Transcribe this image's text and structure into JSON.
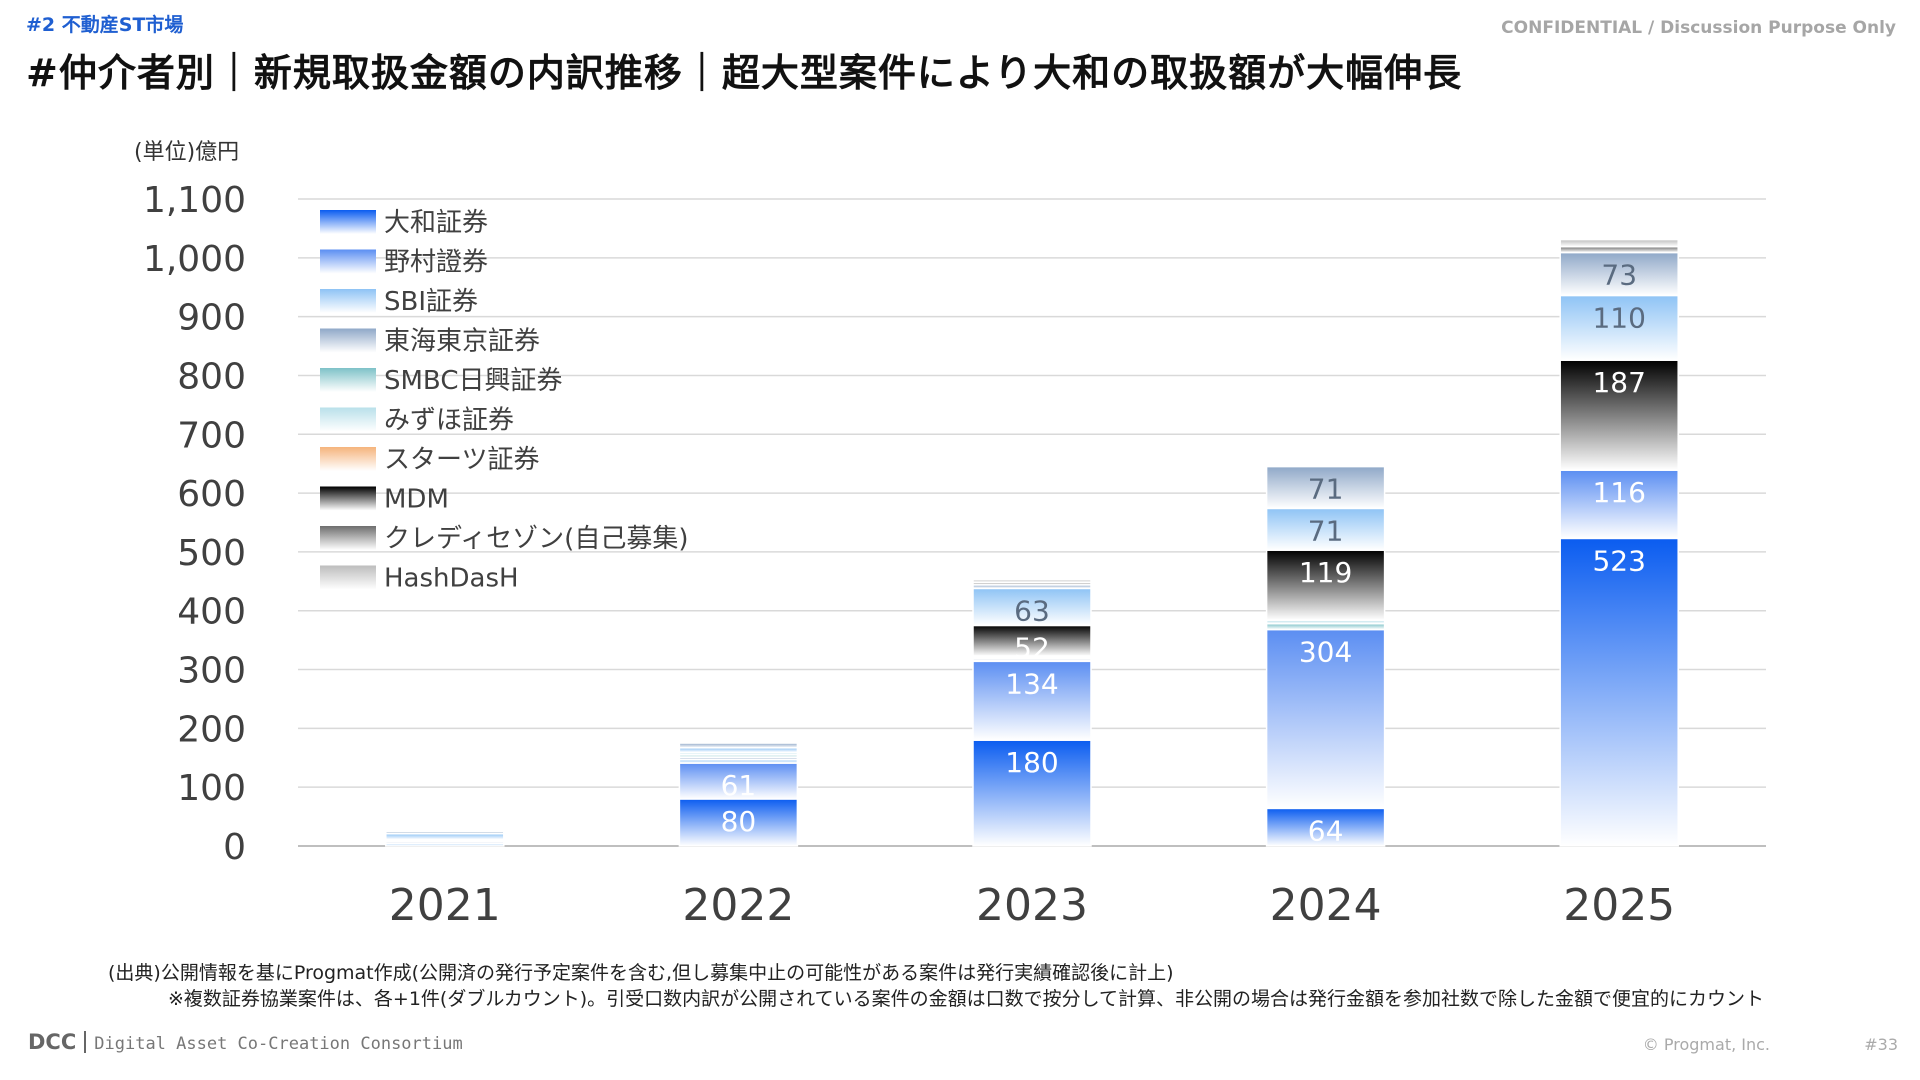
{
  "header": {
    "section_label": "#2 不動産ST市場",
    "confidential": "CONFIDENTIAL / Discussion Purpose Only",
    "title": "#仲介者別｜新規取扱金額の内訳推移｜超大型案件により大和の取扱額が大幅伸長"
  },
  "chart_data": {
    "type": "bar",
    "stacked": true,
    "unit_label": "(単位)億円",
    "categories": [
      "2021",
      "2022",
      "2023",
      "2024",
      "2025"
    ],
    "ylim": [
      0,
      1100
    ],
    "yticks": [
      "0",
      "100",
      "200",
      "300",
      "400",
      "500",
      "600",
      "700",
      "800",
      "900",
      "1,000",
      "1,100"
    ],
    "grid": true,
    "legend_position": "top-left",
    "series": [
      {
        "name": "大和証券",
        "color": "#0a5cf0",
        "values": [
          0,
          80,
          180,
          64,
          523
        ],
        "labels": [
          "",
          "80",
          "180",
          "64",
          "523"
        ]
      },
      {
        "name": "野村證券",
        "color": "#5b8ef2",
        "values": [
          0,
          61,
          134,
          304,
          116
        ],
        "labels": [
          "",
          "61",
          "134",
          "304",
          "116"
        ]
      },
      {
        "name": "SBI証券",
        "color": "#8ec3f5",
        "values": [
          4,
          6,
          2,
          0,
          0
        ],
        "labels": [
          "",
          "",
          "",
          "",
          ""
        ]
      },
      {
        "name": "東海東京証券",
        "color": "#8fa8c8",
        "values": [
          3,
          4,
          3,
          0,
          0
        ],
        "labels": [
          "",
          "",
          "",
          "",
          ""
        ]
      },
      {
        "name": "SMBC日興証券",
        "color": "#7ec2c8",
        "values": [
          2,
          4,
          2,
          10,
          0
        ],
        "labels": [
          "",
          "",
          "",
          "",
          ""
        ]
      },
      {
        "name": "みずほ証券",
        "color": "#b9e0ea",
        "values": [
          2,
          4,
          2,
          6,
          0
        ],
        "labels": [
          "",
          "",
          "",
          "",
          ""
        ]
      },
      {
        "name": "スターツ証券",
        "color": "#f5b47c",
        "values": [
          0,
          0,
          0,
          0,
          0
        ],
        "labels": [
          "",
          "",
          "",
          "",
          ""
        ]
      },
      {
        "name": "MDM",
        "color": "#000000",
        "values": [
          0,
          0,
          52,
          119,
          187
        ],
        "labels": [
          "",
          "",
          "52",
          "119",
          "187"
        ]
      },
      {
        "name": "SBI証券",
        "color": "#8ec3f5",
        "values": [
          10,
          8,
          63,
          71,
          110
        ],
        "labels": [
          "",
          "",
          "63",
          "71",
          "110"
        ],
        "legend": false
      },
      {
        "name": "東海東京証券",
        "color": "#8fa8c8",
        "values": [
          4,
          8,
          6,
          71,
          73
        ],
        "labels": [
          "",
          "",
          "",
          "71",
          "73"
        ],
        "legend": false
      },
      {
        "name": "クレディセゾン(自己募集)",
        "color": "#6e6e6e",
        "values": [
          2,
          0,
          4,
          0,
          10
        ],
        "labels": [
          "",
          "",
          "",
          "",
          ""
        ]
      },
      {
        "name": "HashDasH",
        "color": "#bdbdbd",
        "values": [
          2,
          0,
          5,
          0,
          12
        ],
        "labels": [
          "",
          "",
          "",
          "",
          ""
        ]
      }
    ]
  },
  "footer": {
    "source_line_1": "(出典)公開情報を基にProgmat作成(公開済の発行予定案件を含む,但し募集中止の可能性がある案件は発行実績確認後に計上)",
    "source_line_2": "※複数証券協業案件は、各+1件(ダブルカウント)。引受口数内訳が公開されている案件の金額は口数で按分して計算、非公開の場合は発行金額を参加社数で除した金額で便宜的にカウント",
    "brand_mark": "DCC",
    "brand_name": "Digital Asset Co-Creation Consortium",
    "copyright": "© Progmat, Inc.",
    "page_number": "#33"
  }
}
